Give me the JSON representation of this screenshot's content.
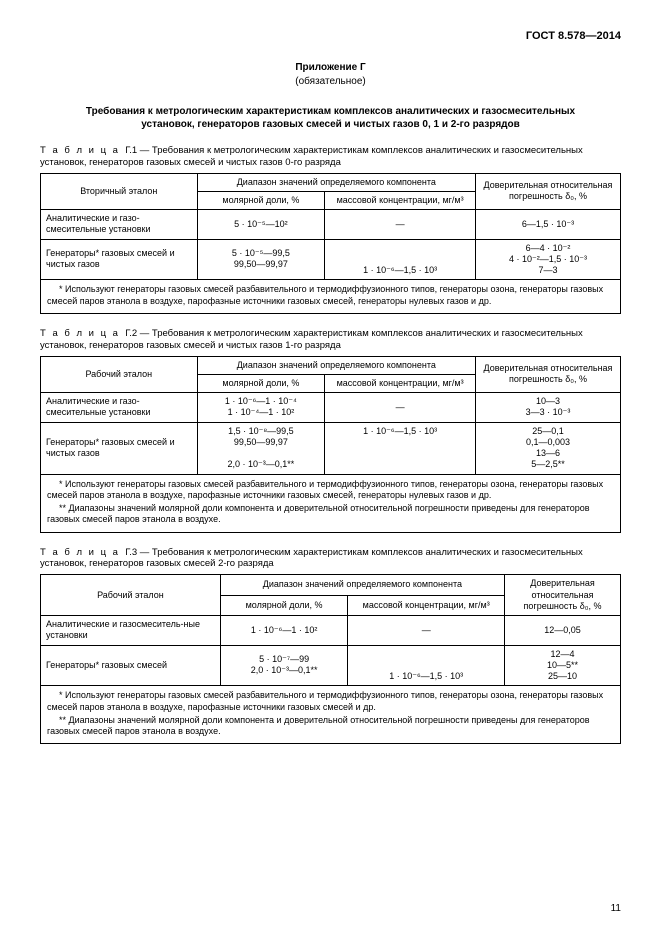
{
  "doc_id": "ГОСТ 8.578—2014",
  "appendix_label": "Приложение Г",
  "appendix_status": "(обязательное)",
  "heading": "Требования к метрологическим характеристикам комплексов аналитических и газосмесительных установок, генераторов газовых смесей и чистых газов 0, 1 и 2-го разрядов",
  "t1": {
    "caption_prefix": "Т а б л и ц а",
    "caption_num": "Г.1",
    "caption_text": "— Требования к метрологическим характеристикам комплексов аналитических и газосмесительных установок, генераторов газовых смесей и чистых газов 0-го разряда",
    "h_etalon": "Вторичный эталон",
    "h_range": "Диапазон значений определяемого компонента",
    "h_molar": "молярной доли, %",
    "h_mass": "массовой концентрации, мг/м³",
    "h_err": "Доверительная относительная погрешность δ₀, %",
    "r1_name": "Аналитические и газо-смесительные установки",
    "r1_molar": "5 · 10⁻⁵—10²",
    "r1_mass": "—",
    "r1_err": "6—1,5 · 10⁻³",
    "r2_name": "Генераторы* газовых смесей и чистых газов",
    "r2_molar": "5 · 10⁻⁵—99,5\n99,50—99,97",
    "r2_mass": "1 · 10⁻⁶—1,5 · 10³",
    "r2_err": "6—4 · 10⁻²\n4 · 10⁻²—1,5 · 10⁻³\n7—3",
    "note": "* Используют генераторы газовых смесей разбавительного и термодиффузионного типов, генераторы озона, генераторы газовых смесей паров этанола в воздухе, парофазные источники газовых смесей, генераторы нулевых газов и др."
  },
  "t2": {
    "caption_num": "Г.2",
    "caption_text": "— Требования к метрологическим характеристикам комплексов аналитических и газосмесительных установок, генераторов газовых смесей и чистых газов 1-го разряда",
    "h_etalon": "Рабочий эталон",
    "r1_name": "Аналитические и газо-смесительные установки",
    "r1_molar": "1 · 10⁻⁶—1 · 10⁻⁴\n1 · 10⁻⁴—1 · 10²",
    "r1_mass": "—",
    "r1_err": "10—3\n3—3 · 10⁻³",
    "r2_name": "Генераторы* газовых смесей и чистых газов",
    "r2_molar": "1,5 · 10⁻⁸—99,5\n99,50—99,97\n \n2,0 · 10⁻³—0,1**",
    "r2_mass": "1 · 10⁻⁶—1,5 · 10³",
    "r2_err": "25—0,1\n0,1—0,003\n13—6\n5—2,5**",
    "note1": "* Используют генераторы газовых смесей разбавительного и термодиффузионного типов, генераторы озона, генераторы газовых смесей паров этанола в воздухе, парофазные источники газовых смесей, генераторы нулевых газов и др.",
    "note2": "** Диапазоны значений молярной доли компонента и доверительной относительной погрешности приведены для генераторов газовых смесей паров этанола в воздухе."
  },
  "t3": {
    "caption_num": "Г.3",
    "caption_text": "— Требования к метрологическим характеристикам комплексов аналитических и газосмесительных установок, генераторов газовых смесей 2-го разряда",
    "h_etalon": "Рабочий эталон",
    "h_err": "Доверительная относительная погрешность δ₀, %",
    "r1_name": "Аналитические и газосмеситель-ные установки",
    "r1_molar": "1 · 10⁻⁶—1 · 10²",
    "r1_mass": "—",
    "r1_err": "12—0,05",
    "r2_name": "Генераторы* газовых смесей",
    "r2_molar": "5 · 10⁻⁷—99\n2,0 · 10⁻³—0,1**",
    "r2_mass": "1 · 10⁻⁶—1,5 · 10³",
    "r2_err": "12—4\n10—5**\n25—10",
    "note1": "* Используют генераторы газовых смесей разбавительного и термодиффузионного типов, генераторы озона, генераторы газовых смесей паров этанола в воздухе, парофазные источники газовых смесей и др.",
    "note2": "** Диапазоны значений молярной доли компонента и доверительной относительной погрешности приведены для генераторов газовых смесей паров этанола в воздухе."
  },
  "page_number": "11"
}
